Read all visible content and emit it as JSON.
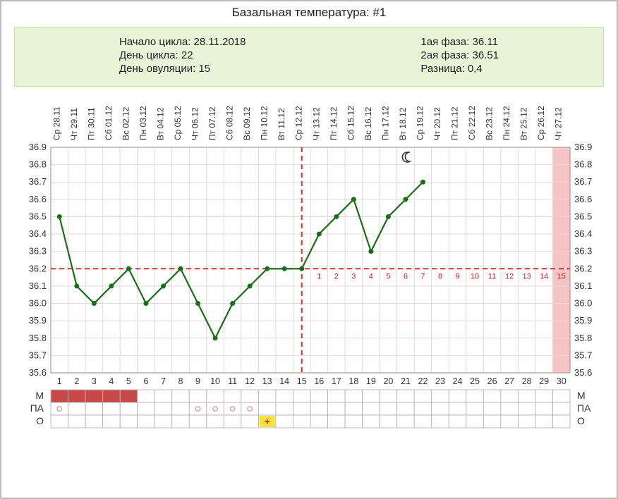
{
  "title": "Базальная температура: #1",
  "info": {
    "left": [
      {
        "k": "Начало цикла",
        "v": "28.11.2018"
      },
      {
        "k": "День цикла",
        "v": "22"
      },
      {
        "k": "День овуляции",
        "v": "15"
      }
    ],
    "right": [
      {
        "k": "1ая фаза",
        "v": "36.11"
      },
      {
        "k": "2ая фаза",
        "v": "36.51"
      },
      {
        "k": "Разница",
        "v": "0,4"
      }
    ]
  },
  "chart": {
    "type": "line",
    "days": 30,
    "ovulation_day": 15,
    "coverline": 36.2,
    "ylim": [
      35.6,
      36.9
    ],
    "ytick_step": 0.1,
    "date_labels": [
      "Ср 28.11",
      "Чт 29.11",
      "Пт 30.11",
      "Сб 01.12",
      "Вс 02.12",
      "Пн 03.12",
      "Вт 04.12",
      "Ср 05.12",
      "Чт 06.12",
      "Пт 07.12",
      "Сб 08.12",
      "Вс 09.12",
      "Пн 10.12",
      "Вт 11.12",
      "Ср 12.12",
      "Чт 13.12",
      "Пт 14.12",
      "Сб 15.12",
      "Вс 16.12",
      "Пн 17.12",
      "Вт 18.12",
      "Ср 19.12",
      "Чт 20.12",
      "Пт 21.12",
      "Сб 22.12",
      "Вс 23.12",
      "Пн 24.12",
      "Вт 25.12",
      "Ср 26.12",
      "Чт 27.12"
    ],
    "temps": [
      36.5,
      36.1,
      36.0,
      36.1,
      36.2,
      36.0,
      36.1,
      36.2,
      36.0,
      35.8,
      36.0,
      36.1,
      36.2,
      36.2,
      36.2,
      36.4,
      36.5,
      36.6,
      36.3,
      36.5,
      36.6,
      36.7,
      null,
      null,
      null,
      null,
      null,
      null,
      null,
      null
    ],
    "post_ov_numbers": [
      1,
      2,
      3,
      4,
      5,
      6,
      7,
      8,
      9,
      10,
      11,
      12,
      13,
      14,
      15
    ],
    "moon_day": 21,
    "intercourse_days": [
      1,
      9,
      10,
      11,
      12
    ],
    "ov_test_pos_day": 13,
    "menses_days": [
      1,
      2,
      3,
      4,
      5
    ],
    "row_labels": [
      "М",
      "ПА",
      "О"
    ],
    "colors": {
      "grid": "#e6d9d9",
      "grid_border": "#b7a7a7",
      "line": "#1a6e1a",
      "point": "#1a6e1a",
      "coverline": "#d83030",
      "ovline": "#d83030",
      "axis_text": "#333",
      "post_ov_num": "#c22",
      "menses": "#c64848",
      "future_band": "#f6c4c4",
      "pa_circle": "#d8a0a0",
      "ov_plus_bg": "#f2e63a",
      "ov_plus_stroke": "#c22"
    },
    "font": {
      "axis": 13,
      "tick": 13,
      "postov": 11,
      "rowlab": 14
    }
  }
}
